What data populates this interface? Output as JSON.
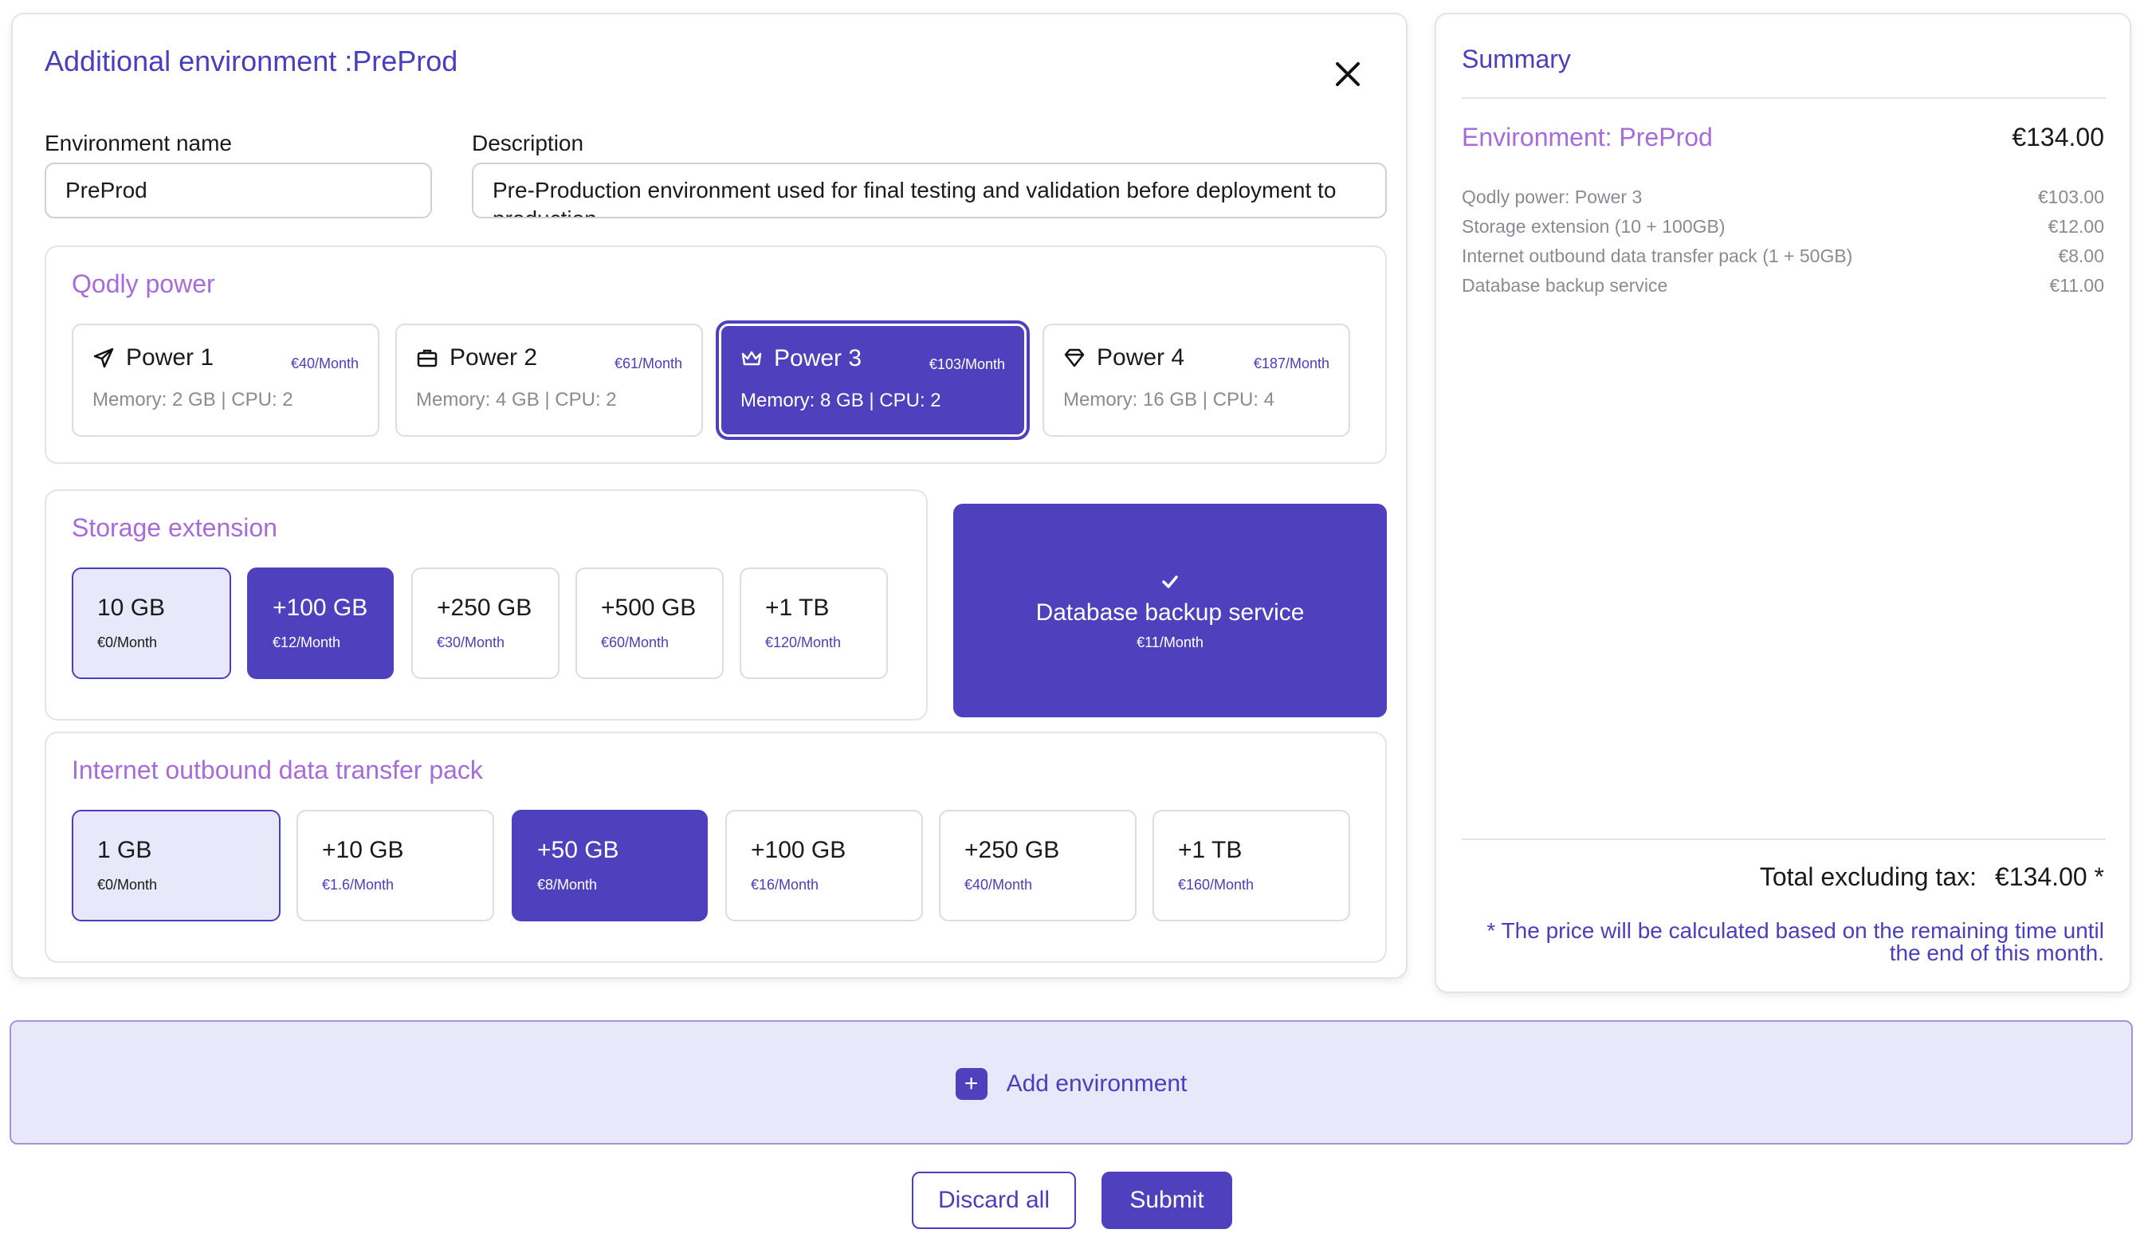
{
  "env_card": {
    "title": "Additional environment :PreProd",
    "env_name_label": "Environment name",
    "env_name_value": "PreProd",
    "description_label": "Description",
    "description_value": "Pre-Production environment used for final testing and validation before deployment to production."
  },
  "power": {
    "title": "Qodly power",
    "options": [
      {
        "name": "Power 1",
        "price": "€40/Month",
        "spec": "Memory: 2 GB | CPU: 2",
        "icon": "paper-plane-icon",
        "selected": false
      },
      {
        "name": "Power 2",
        "price": "€61/Month",
        "spec": "Memory: 4 GB | CPU: 2",
        "icon": "briefcase-icon",
        "selected": false
      },
      {
        "name": "Power 3",
        "price": "€103/Month",
        "spec": "Memory: 8 GB | CPU: 2",
        "icon": "crown-icon",
        "selected": true
      },
      {
        "name": "Power 4",
        "price": "€187/Month",
        "spec": "Memory: 16 GB | CPU: 4",
        "icon": "diamond-icon",
        "selected": false
      }
    ]
  },
  "storage": {
    "title": "Storage extension",
    "options": [
      {
        "size": "10 GB",
        "price": "€0/Month",
        "state": "base"
      },
      {
        "size": "+100 GB",
        "price": "€12/Month",
        "state": "selected"
      },
      {
        "size": "+250 GB",
        "price": "€30/Month",
        "state": "none"
      },
      {
        "size": "+500 GB",
        "price": "€60/Month",
        "state": "none"
      },
      {
        "size": "+1 TB",
        "price": "€120/Month",
        "state": "none"
      }
    ]
  },
  "backup": {
    "title": "Database backup service",
    "price": "€11/Month",
    "checked": true
  },
  "transfer": {
    "title": "Internet outbound data transfer pack",
    "options": [
      {
        "size": "1 GB",
        "price": "€0/Month",
        "state": "base"
      },
      {
        "size": "+10 GB",
        "price": "€1.6/Month",
        "state": "none"
      },
      {
        "size": "+50 GB",
        "price": "€8/Month",
        "state": "selected"
      },
      {
        "size": "+100 GB",
        "price": "€16/Month",
        "state": "none"
      },
      {
        "size": "+250 GB",
        "price": "€40/Month",
        "state": "none"
      },
      {
        "size": "+1 TB",
        "price": "€160/Month",
        "state": "none"
      }
    ]
  },
  "summary": {
    "title": "Summary",
    "env_label": "Environment: PreProd",
    "env_price": "€134.00",
    "lines": [
      {
        "label": "Qodly power: Power 3",
        "price": "€103.00"
      },
      {
        "label": "Storage extension (10 + 100GB)",
        "price": "€12.00"
      },
      {
        "label": "Internet outbound data transfer pack (1 + 50GB)",
        "price": "€8.00"
      },
      {
        "label": "Database backup service",
        "price": "€11.00"
      }
    ],
    "total_label": "Total excluding tax:",
    "total_price": "€134.00 *",
    "note": "* The price will be calculated based on the remaining time until the end of this month."
  },
  "actions": {
    "add_env": "Add environment",
    "discard": "Discard all",
    "submit": "Submit"
  },
  "colors": {
    "accent": "#4f40bd",
    "accent_light": "#e9e8fb",
    "section_title": "#a66bdc"
  }
}
